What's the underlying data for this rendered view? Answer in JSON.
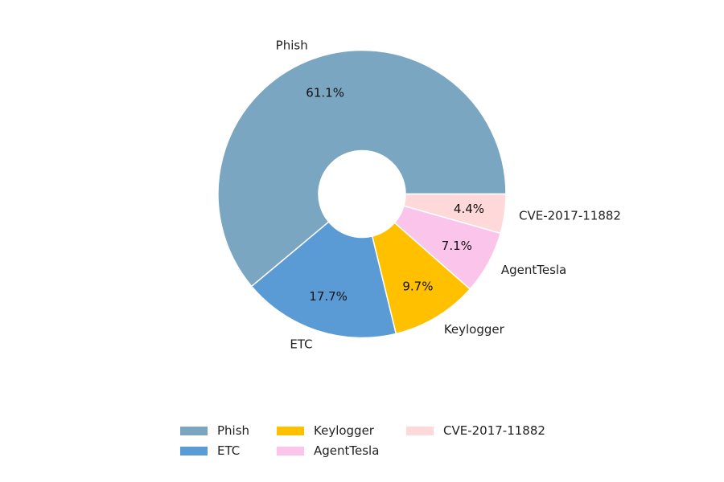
{
  "chart_data": {
    "type": "pie",
    "style": "donut",
    "labels": [
      "Phish",
      "ETC",
      "Keylogger",
      "AgentTesla",
      "CVE-2017-11882"
    ],
    "values": [
      61.1,
      17.7,
      9.7,
      7.1,
      4.4
    ],
    "value_labels": [
      "61.1%",
      "17.7%",
      "9.7%",
      "7.1%",
      "4.4%"
    ],
    "colors": [
      "#7aa6c2",
      "#5b9bd5",
      "#ffc000",
      "#fbc4ea",
      "#ffd9d9"
    ],
    "legend": {
      "placement": "bottom-center",
      "entries": [
        "Phish",
        "ETC",
        "Keylogger",
        "AgentTesla",
        "CVE-2017-11882"
      ]
    }
  }
}
